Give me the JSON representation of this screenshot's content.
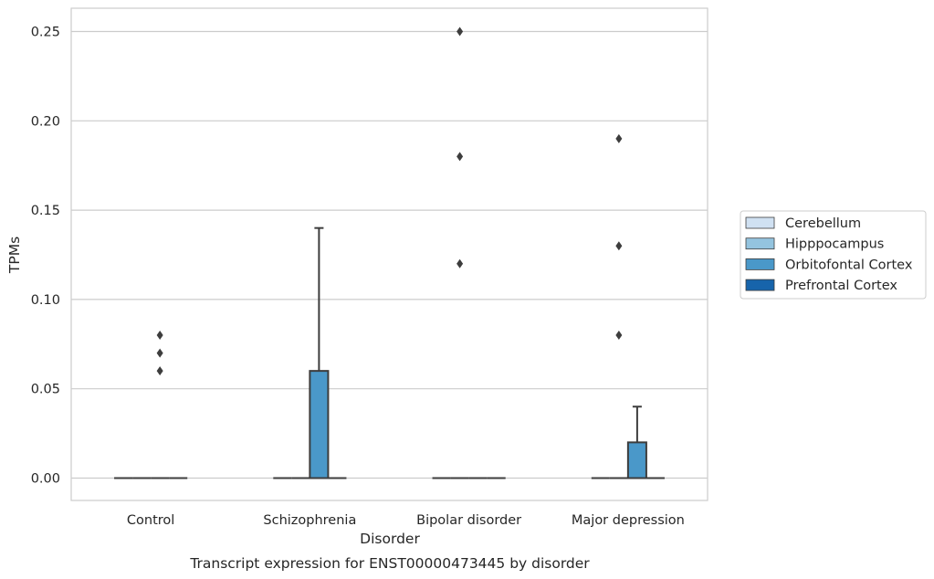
{
  "chart_data": {
    "type": "box",
    "caption": "Transcript expression for ENST00000473445 by disorder",
    "xlabel": "Disorder",
    "ylabel": "TPMs",
    "ylim": [
      -0.012,
      0.263
    ],
    "yticks": [
      0.0,
      0.05,
      0.1,
      0.15,
      0.2,
      0.25
    ],
    "ytick_labels": [
      "0.00",
      "0.05",
      "0.10",
      "0.15",
      "0.20",
      "0.25"
    ],
    "grid": "horizontal",
    "legend_placement": "right",
    "categories": [
      "Control",
      "Schizophrenia",
      "Bipolar disorder",
      "Major depression"
    ],
    "series": [
      {
        "name": "Cerebellum",
        "color": "#d0e1f2",
        "boxes": [
          {
            "q1": 0,
            "median": 0,
            "q3": 0,
            "whisker_low": 0,
            "whisker_high": 0,
            "outliers": []
          },
          {
            "q1": 0,
            "median": 0,
            "q3": 0,
            "whisker_low": 0,
            "whisker_high": 0,
            "outliers": []
          },
          {
            "q1": 0,
            "median": 0,
            "q3": 0,
            "whisker_low": 0,
            "whisker_high": 0,
            "outliers": []
          },
          {
            "q1": 0,
            "median": 0,
            "q3": 0,
            "whisker_low": 0,
            "whisker_high": 0,
            "outliers": []
          }
        ]
      },
      {
        "name": "Hipppocampus",
        "color": "#94c4df",
        "boxes": [
          {
            "q1": 0,
            "median": 0,
            "q3": 0,
            "whisker_low": 0,
            "whisker_high": 0,
            "outliers": []
          },
          {
            "q1": 0,
            "median": 0,
            "q3": 0,
            "whisker_low": 0,
            "whisker_high": 0,
            "outliers": []
          },
          {
            "q1": 0,
            "median": 0,
            "q3": 0,
            "whisker_low": 0,
            "whisker_high": 0,
            "outliers": [
              0.12,
              0.18,
              0.25
            ]
          },
          {
            "q1": 0,
            "median": 0,
            "q3": 0,
            "whisker_low": 0,
            "whisker_high": 0,
            "outliers": [
              0.08,
              0.13,
              0.19
            ]
          }
        ]
      },
      {
        "name": "Orbitofontal Cortex",
        "color": "#4a98c9",
        "boxes": [
          {
            "q1": 0,
            "median": 0,
            "q3": 0,
            "whisker_low": 0,
            "whisker_high": 0,
            "outliers": [
              0.06,
              0.07,
              0.08
            ]
          },
          {
            "q1": 0,
            "median": 0,
            "q3": 0.06,
            "whisker_low": 0,
            "whisker_high": 0.14,
            "outliers": []
          },
          {
            "q1": 0,
            "median": 0,
            "q3": 0,
            "whisker_low": 0,
            "whisker_high": 0,
            "outliers": []
          },
          {
            "q1": 0,
            "median": 0,
            "q3": 0.02,
            "whisker_low": 0,
            "whisker_high": 0.04,
            "outliers": []
          }
        ]
      },
      {
        "name": "Prefrontal Cortex",
        "color": "#1764ab",
        "boxes": [
          {
            "q1": 0,
            "median": 0,
            "q3": 0,
            "whisker_low": 0,
            "whisker_high": 0,
            "outliers": []
          },
          {
            "q1": 0,
            "median": 0,
            "q3": 0,
            "whisker_low": 0,
            "whisker_high": 0,
            "outliers": []
          },
          {
            "q1": 0,
            "median": 0,
            "q3": 0,
            "whisker_low": 0,
            "whisker_high": 0,
            "outliers": []
          },
          {
            "q1": 0,
            "median": 0,
            "q3": 0,
            "whisker_low": 0,
            "whisker_high": 0,
            "outliers": []
          }
        ]
      }
    ]
  }
}
